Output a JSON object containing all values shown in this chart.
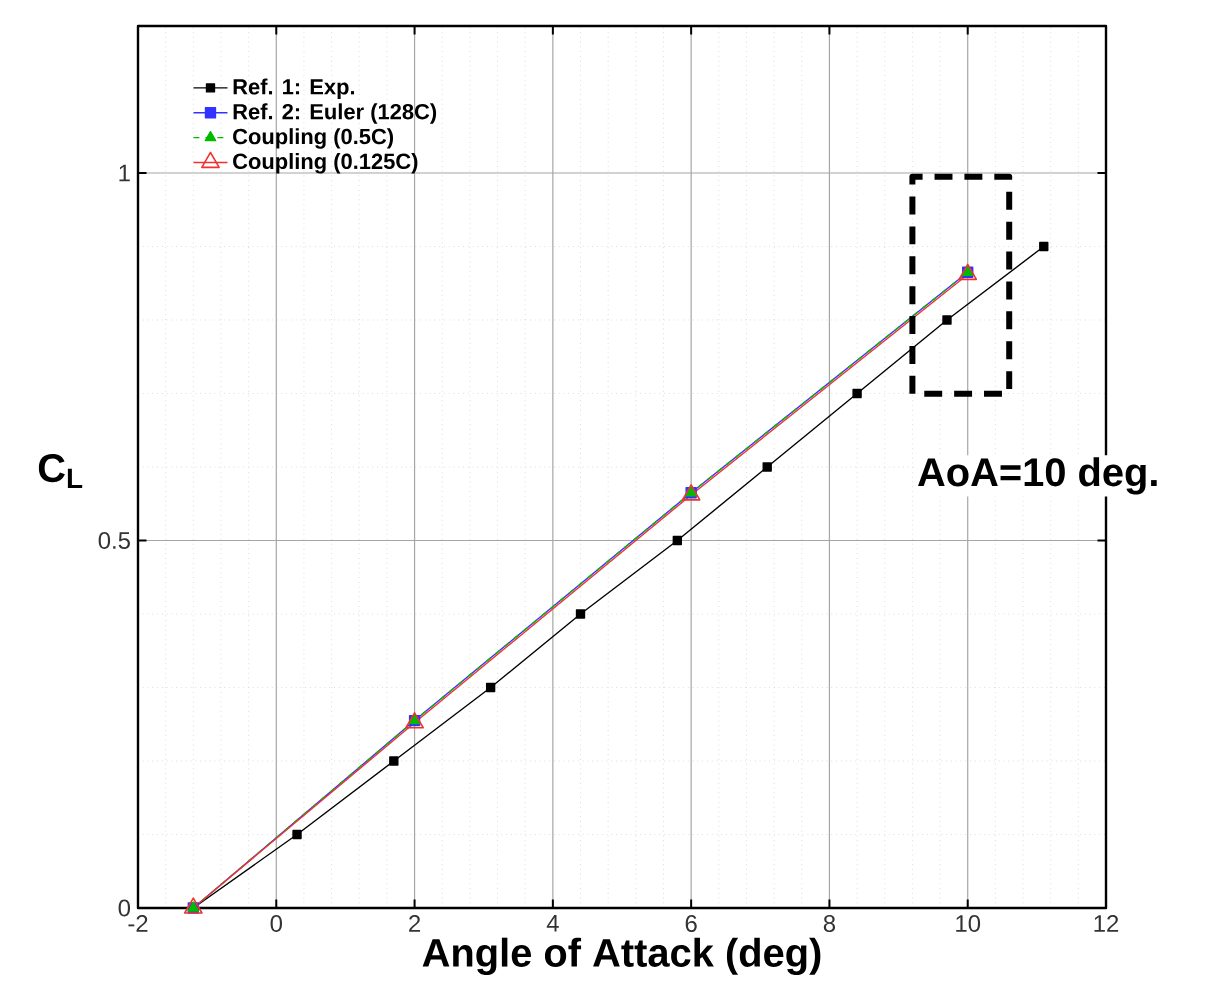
{
  "chart_data": {
    "type": "line",
    "xlabel": "Angle of Attack (deg)",
    "ylabel": "C$_{L}$",
    "xlim": [
      -2,
      12
    ],
    "ylim": [
      0,
      1.2
    ],
    "xticks": [
      -2,
      0,
      2,
      4,
      6,
      8,
      10,
      12
    ],
    "yticks": [
      0,
      0.5,
      1
    ],
    "grid": true,
    "legend": "top left",
    "series": [
      {
        "name": "Ref. 1: Exp.",
        "color": "#000000",
        "marker": "square",
        "line_style": "solid",
        "x": [
          -1.2,
          0.3,
          1.7,
          3.1,
          4.4,
          5.8,
          7.1,
          8.4,
          9.7,
          11.1
        ],
        "values": [
          0,
          0.1,
          0.2,
          0.3,
          0.4,
          0.5,
          0.6,
          0.7,
          0.8,
          0.9
        ]
      },
      {
        "name": "Ref. 2: Euler (128C)",
        "color": "#3333ff",
        "marker": "square",
        "line_style": "solid",
        "x": [
          -1.2,
          2,
          6,
          10
        ],
        "values": [
          0,
          0.255,
          0.565,
          0.865
        ]
      },
      {
        "name": "Coupling (0.5C)",
        "color": "#00bb00",
        "marker": "triangle",
        "line_style": "dashed",
        "x": [
          -1.2,
          2,
          6,
          10
        ],
        "values": [
          0,
          0.255,
          0.565,
          0.865
        ]
      },
      {
        "name": "Coupling (0.125C)",
        "color": "#ee3333",
        "marker": "triangle-open",
        "line_style": "solid",
        "x": [
          -1.2,
          2,
          6,
          10
        ],
        "values": [
          0,
          0.252,
          0.562,
          0.862
        ]
      }
    ],
    "annotations": [
      "AoA=10 deg."
    ]
  }
}
